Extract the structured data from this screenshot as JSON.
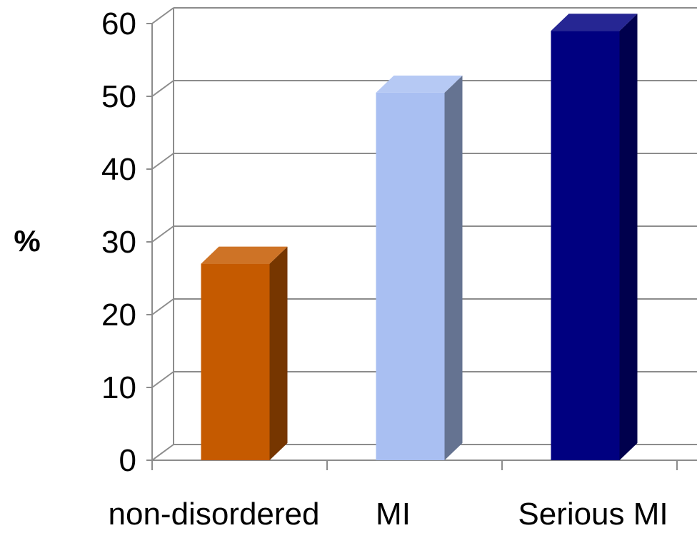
{
  "chart_data": {
    "type": "bar",
    "style": "3d-column",
    "categories": [
      "non-disordered",
      "MI",
      "Serious MI"
    ],
    "series": [
      {
        "values": [
          27,
          50.5,
          59
        ]
      }
    ],
    "bar_colors": [
      "#C55A00",
      "#A9BFF2",
      "#000080"
    ],
    "xlabel": "",
    "ylabel": "%",
    "ylim": [
      0,
      60
    ],
    "yticks": [
      "0",
      "10",
      "20",
      "30",
      "40",
      "50",
      "60"
    ],
    "grid": true,
    "legend": "none"
  }
}
